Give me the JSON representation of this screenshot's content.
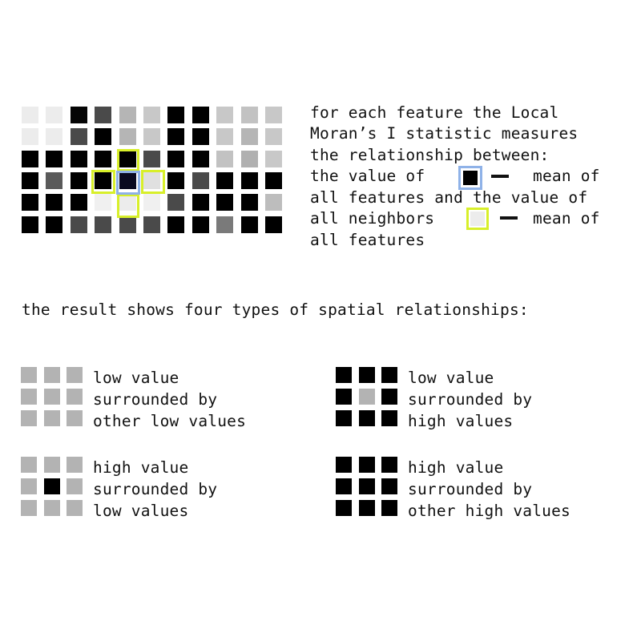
{
  "colors": {
    "yellow_highlight": "#d8ef2a",
    "blue_highlight": "#8fb2e8",
    "low": "#b3b3b3",
    "high": "#000000"
  },
  "grid": {
    "rows": [
      [
        "#ececec",
        "#ececec",
        "#050505",
        "#4a4a4a",
        "#b5b5b5",
        "#c8c8c8",
        "#000000",
        "#000000",
        "#c8c8c8",
        "#c2c2c2",
        "#c8c8c8"
      ],
      [
        "#ececec",
        "#ececec",
        "#4a4a4a",
        "#000000",
        "#b5b5b5",
        "#c8c8c8",
        "#000000",
        "#000000",
        "#c8c8c8",
        "#b5b5b5",
        "#c8c8c8"
      ],
      [
        "#000000",
        "#000000",
        "#000000",
        "#000000",
        "#000000",
        "#4a4a4a",
        "#000000",
        "#000000",
        "#c2c2c2",
        "#b0b0b0",
        "#c8c8c8"
      ],
      [
        "#000000",
        "#5a5a5a",
        "#000000",
        "#000000",
        "#0a0a20",
        "#e0e0e0",
        "#000000",
        "#4a4a4a",
        "#000000",
        "#000000",
        "#000000"
      ],
      [
        "#000000",
        "#000000",
        "#000000",
        "#f0f0f0",
        "#ececec",
        "#f0f0f0",
        "#4a4a4a",
        "#000000",
        "#000000",
        "#000000",
        "#bdbdbd"
      ],
      [
        "#000000",
        "#000000",
        "#4a4a4a",
        "#4a4a4a",
        "#4a4a4a",
        "#4a4a4a",
        "#000000",
        "#000000",
        "#7a7a7a",
        "#000000",
        "#000000"
      ]
    ]
  },
  "description": {
    "line1": "for each feature the Local",
    "line2": "Moran’s I statistic measures",
    "line3": "the relationship between:",
    "line4a": "the value of",
    "line4b": "mean of",
    "line5": "all features and the value of",
    "line6a": "all neighbors",
    "line6b": "mean of",
    "line7": "all features",
    "swatch_blue_fill": "#000000",
    "swatch_yellow_fill": "#ececec"
  },
  "result_heading": "the result shows four types of spatial relationships:",
  "legend": [
    {
      "pattern": [
        [
          "#b3b3b3",
          "#b3b3b3",
          "#b3b3b3"
        ],
        [
          "#b3b3b3",
          "#b3b3b3",
          "#b3b3b3"
        ],
        [
          "#b3b3b3",
          "#b3b3b3",
          "#b3b3b3"
        ]
      ],
      "line1": "low value",
      "line2": "surrounded by",
      "line3": "other low values"
    },
    {
      "pattern": [
        [
          "#000000",
          "#000000",
          "#000000"
        ],
        [
          "#000000",
          "#b3b3b3",
          "#000000"
        ],
        [
          "#000000",
          "#000000",
          "#000000"
        ]
      ],
      "line1": "low value",
      "line2": "surrounded by",
      "line3": "high values"
    },
    {
      "pattern": [
        [
          "#b3b3b3",
          "#b3b3b3",
          "#b3b3b3"
        ],
        [
          "#b3b3b3",
          "#000000",
          "#b3b3b3"
        ],
        [
          "#b3b3b3",
          "#b3b3b3",
          "#b3b3b3"
        ]
      ],
      "line1": "high value",
      "line2": "surrounded by",
      "line3": "low values"
    },
    {
      "pattern": [
        [
          "#000000",
          "#000000",
          "#000000"
        ],
        [
          "#000000",
          "#000000",
          "#000000"
        ],
        [
          "#000000",
          "#000000",
          "#000000"
        ]
      ],
      "line1": "high value",
      "line2": "surrounded by",
      "line3": "other high values"
    }
  ]
}
